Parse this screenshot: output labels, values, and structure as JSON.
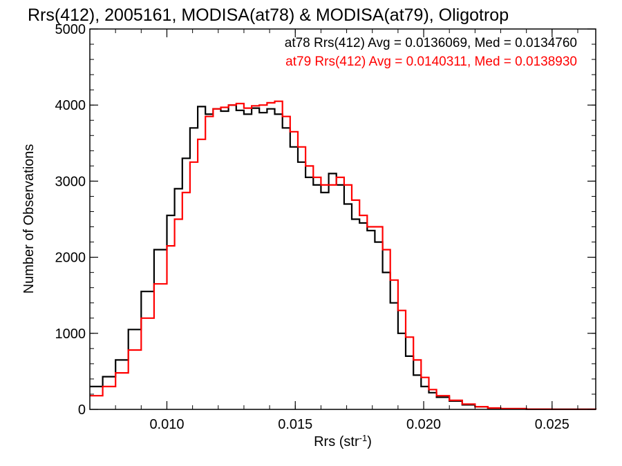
{
  "chart_data": {
    "type": "line",
    "step": true,
    "title": "Rrs(412), 2005161, MODISA(at78) & MODISA(at79), Oligotrop",
    "xlabel": "Rrs (str",
    "xlabel_sup": "-1",
    "xlabel_close": ")",
    "ylabel": "Number of Observations",
    "xlim": [
      0.007,
      0.0267
    ],
    "ylim": [
      0,
      5000
    ],
    "x_ticks": [
      0.01,
      0.015,
      0.02,
      0.025
    ],
    "x_tick_labels": [
      "0.010",
      "0.015",
      "0.020",
      "0.025"
    ],
    "y_ticks": [
      0,
      1000,
      2000,
      3000,
      4000,
      5000
    ],
    "y_tick_labels": [
      "0",
      "1000",
      "2000",
      "3000",
      "4000",
      "5000"
    ],
    "x_minor_step": 0.001,
    "y_minor_step": 200,
    "annotations": [
      {
        "text": "at78 Rrs(412) Avg = 0.0136069, Med = 0.0134760",
        "color": "#000000"
      },
      {
        "text": "at79 Rrs(412) Avg = 0.0140311, Med = 0.0138930",
        "color": "#ff0000"
      }
    ],
    "series": [
      {
        "color": "#000000",
        "x": [
          0.007,
          0.0075,
          0.008,
          0.0085,
          0.009,
          0.0095,
          0.01,
          0.0103,
          0.0106,
          0.0109,
          0.0112,
          0.0115,
          0.0118,
          0.0121,
          0.0124,
          0.0127,
          0.013,
          0.0133,
          0.0136,
          0.0139,
          0.0142,
          0.0145,
          0.0148,
          0.0151,
          0.0154,
          0.0157,
          0.016,
          0.0163,
          0.0166,
          0.0169,
          0.0172,
          0.0175,
          0.0178,
          0.0181,
          0.0184,
          0.0187,
          0.019,
          0.0193,
          0.0196,
          0.0199,
          0.0202,
          0.0205,
          0.021,
          0.0215,
          0.022,
          0.0225,
          0.023,
          0.024,
          0.025,
          0.0267
        ],
        "y": [
          300,
          430,
          650,
          1050,
          1550,
          2100,
          2550,
          2900,
          3300,
          3700,
          3980,
          3880,
          3950,
          3920,
          4000,
          3930,
          3880,
          3960,
          3900,
          3950,
          3880,
          3700,
          3450,
          3250,
          3050,
          2950,
          2850,
          3100,
          2950,
          2700,
          2500,
          2450,
          2350,
          2200,
          1800,
          1400,
          1000,
          700,
          450,
          300,
          220,
          160,
          110,
          60,
          35,
          15,
          8,
          3,
          1,
          0
        ]
      },
      {
        "color": "#ff0000",
        "x": [
          0.007,
          0.0075,
          0.008,
          0.0085,
          0.009,
          0.0095,
          0.01,
          0.0103,
          0.0106,
          0.0109,
          0.0112,
          0.0115,
          0.0118,
          0.0121,
          0.0124,
          0.0127,
          0.013,
          0.0133,
          0.0136,
          0.0139,
          0.0142,
          0.0145,
          0.0148,
          0.0151,
          0.0154,
          0.0157,
          0.016,
          0.0163,
          0.0166,
          0.0169,
          0.0172,
          0.0175,
          0.0178,
          0.0181,
          0.0184,
          0.0187,
          0.019,
          0.0193,
          0.0196,
          0.0199,
          0.0202,
          0.0205,
          0.021,
          0.0215,
          0.022,
          0.0225,
          0.023,
          0.024,
          0.025,
          0.0267
        ],
        "y": [
          180,
          300,
          480,
          780,
          1200,
          1650,
          2150,
          2500,
          2850,
          3250,
          3550,
          3850,
          3950,
          3970,
          4000,
          4020,
          3960,
          3990,
          4000,
          4030,
          4050,
          3850,
          3650,
          3450,
          3200,
          3050,
          2950,
          2950,
          3050,
          2950,
          2750,
          2550,
          2400,
          2400,
          2100,
          1700,
          1300,
          950,
          650,
          420,
          260,
          180,
          120,
          70,
          35,
          18,
          10,
          4,
          2,
          0
        ]
      }
    ]
  }
}
